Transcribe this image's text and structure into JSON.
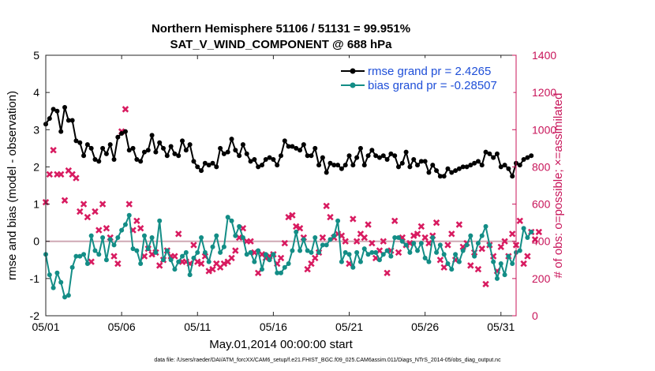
{
  "chart_data": {
    "type": "line",
    "title_line1": "Northern Hemisphere 51106 / 51131 = 99.951%",
    "title_line2": "SAT_V_WIND_COMPONENT @ 688 hPa",
    "xlabel": "May.01,2014 00:00:00 start",
    "ylabel_left": "rmse and bias (model - observation)",
    "ylabel_right": "# of obs: o=possible; ×=assimilated",
    "footer": "data file: /Users/raeder/DAI/ATM_forcXX/CAM6_setup/f.e21.FHIST_BGC.f09_025.CAM6assim.011/Diags_NTrS_2014-05/obs_diag_output.nc",
    "xlim": [
      0,
      31
    ],
    "ylim_left": [
      -2,
      5
    ],
    "ylim_right": [
      0,
      1400
    ],
    "x_ticks": [
      0,
      5,
      10,
      15,
      20,
      25,
      30
    ],
    "x_tick_labels": [
      "05/01",
      "05/06",
      "05/11",
      "05/16",
      "05/21",
      "05/26",
      "05/31"
    ],
    "y_ticks_left": [
      -2,
      -1,
      0,
      1,
      2,
      3,
      4,
      5
    ],
    "y_ticks_right": [
      0,
      200,
      400,
      600,
      800,
      1000,
      1200,
      1400
    ],
    "zero_line": 0,
    "legend_position": "top-right",
    "colors": {
      "rmse": "#000000",
      "bias": "#138d86",
      "obs": "#d81b60",
      "axis_right": "#c8155a",
      "legend_text": "#1f4fd8"
    },
    "series": [
      {
        "name": "rmse grand pr = 2.4265",
        "key": "rmse",
        "values": [
          3.15,
          3.3,
          3.55,
          3.5,
          2.95,
          3.6,
          3.25,
          3.25,
          2.7,
          2.65,
          2.3,
          2.6,
          2.5,
          2.2,
          2.15,
          2.5,
          2.35,
          2.6,
          2.2,
          2.8,
          2.9,
          2.95,
          2.45,
          2.5,
          2.2,
          2.15,
          2.4,
          2.45,
          2.85,
          2.4,
          2.65,
          2.5,
          2.3,
          2.55,
          2.35,
          2.3,
          2.7,
          2.45,
          2.6,
          2.15,
          2.0,
          1.9,
          2.1,
          2.05,
          2.1,
          2.0,
          2.5,
          2.35,
          2.4,
          2.75,
          2.45,
          2.3,
          2.6,
          2.35,
          2.15,
          2.2,
          2.0,
          2.05,
          2.2,
          2.25,
          2.2,
          2.05,
          2.3,
          2.7,
          2.55,
          2.55,
          2.5,
          2.45,
          2.6,
          2.3,
          2.3,
          2.5,
          2.05,
          2.25,
          1.85,
          2.1,
          2.05,
          2.05,
          1.95,
          2.05,
          2.3,
          2.05,
          2.25,
          2.5,
          2.05,
          2.3,
          2.45,
          2.3,
          2.25,
          2.3,
          2.2,
          2.35,
          2.3,
          2.0,
          2.1,
          2.4,
          2.0,
          2.2,
          2.05,
          2.15,
          2.15,
          1.85,
          2.05,
          1.9,
          1.75,
          1.75,
          1.95,
          1.85,
          1.9,
          1.95,
          2.0,
          2.0,
          2.05,
          2.1,
          2.15,
          2.05,
          2.4,
          2.35,
          2.25,
          2.35,
          2.0,
          2.05,
          1.95,
          1.75,
          2.1,
          2.05,
          2.2,
          2.25,
          2.3
        ]
      },
      {
        "name": "bias grand pr = -0.28507",
        "key": "bias",
        "values": [
          -0.35,
          -0.9,
          -1.25,
          -0.85,
          -1.1,
          -1.5,
          -1.45,
          -0.7,
          -0.4,
          -0.4,
          -0.35,
          -0.6,
          0.15,
          -0.25,
          -0.35,
          0.1,
          -0.5,
          0.05,
          -0.1,
          0.1,
          0.3,
          0.45,
          0.7,
          -0.2,
          -0.25,
          -0.6,
          0.15,
          -0.2,
          0.1,
          -0.3,
          0.55,
          -0.5,
          -0.25,
          -0.5,
          -0.75,
          -0.55,
          -0.4,
          -0.3,
          -0.9,
          -0.45,
          -0.3,
          0.1,
          -0.3,
          -0.55,
          -0.15,
          0.15,
          -0.3,
          -0.15,
          0.65,
          0.55,
          0.15,
          0.4,
          0.1,
          -0.35,
          -0.3,
          -0.55,
          -0.25,
          -0.75,
          -0.35,
          -0.5,
          -0.35,
          -0.85,
          -0.85,
          -0.7,
          -0.6,
          -0.25,
          0.25,
          -0.25,
          0.05,
          -0.25,
          -0.3,
          0.1,
          -0.3,
          -0.1,
          -0.1,
          0.05,
          0.15,
          0.55,
          -0.55,
          -0.3,
          -0.35,
          -0.7,
          -0.3,
          -0.55,
          -0.2,
          -0.35,
          -0.3,
          -0.3,
          -0.5,
          -0.35,
          -0.25,
          -0.4,
          0.1,
          0.1,
          0.0,
          -0.1,
          -0.3,
          -0.05,
          -0.25,
          -0.05,
          -0.45,
          -0.55,
          0.1,
          -0.3,
          -0.1,
          -0.35,
          -0.6,
          -0.75,
          -0.35,
          -0.55,
          -0.25,
          -0.1,
          0.15,
          -0.4,
          -0.05,
          0.15,
          0.4,
          -0.1,
          -0.55,
          -1.0,
          -0.6,
          -0.9,
          -0.4,
          -0.6,
          -0.3,
          -0.25,
          0.35,
          0.1,
          0.25
        ]
      }
    ],
    "assimilated_counts": [
      610,
      760,
      890,
      760,
      760,
      620,
      780,
      760,
      740,
      560,
      600,
      530,
      290,
      560,
      460,
      600,
      470,
      420,
      320,
      280,
      990,
      1110,
      600,
      460,
      510,
      470,
      320,
      360,
      330,
      340,
      270,
      300,
      350,
      320,
      320,
      440,
      290,
      290,
      280,
      380,
      290,
      280,
      320,
      240,
      250,
      280,
      260,
      280,
      290,
      310,
      350,
      420,
      470,
      400,
      400,
      340,
      230,
      330,
      310,
      320,
      330,
      280,
      310,
      390,
      530,
      540,
      480,
      470,
      420,
      250,
      280,
      310,
      340,
      420,
      590,
      530,
      420,
      440,
      430,
      400,
      280,
      520,
      400,
      440,
      420,
      490,
      390,
      310,
      350,
      400,
      230,
      350,
      510,
      340,
      420,
      380,
      390,
      430,
      440,
      480,
      420,
      390,
      430,
      500,
      300,
      260,
      380,
      440,
      300,
      490,
      370,
      390,
      270,
      340,
      250,
      360,
      170,
      380,
      320,
      240,
      370,
      400,
      320,
      440,
      380,
      510,
      280,
      320,
      450,
      410,
      450
    ]
  }
}
